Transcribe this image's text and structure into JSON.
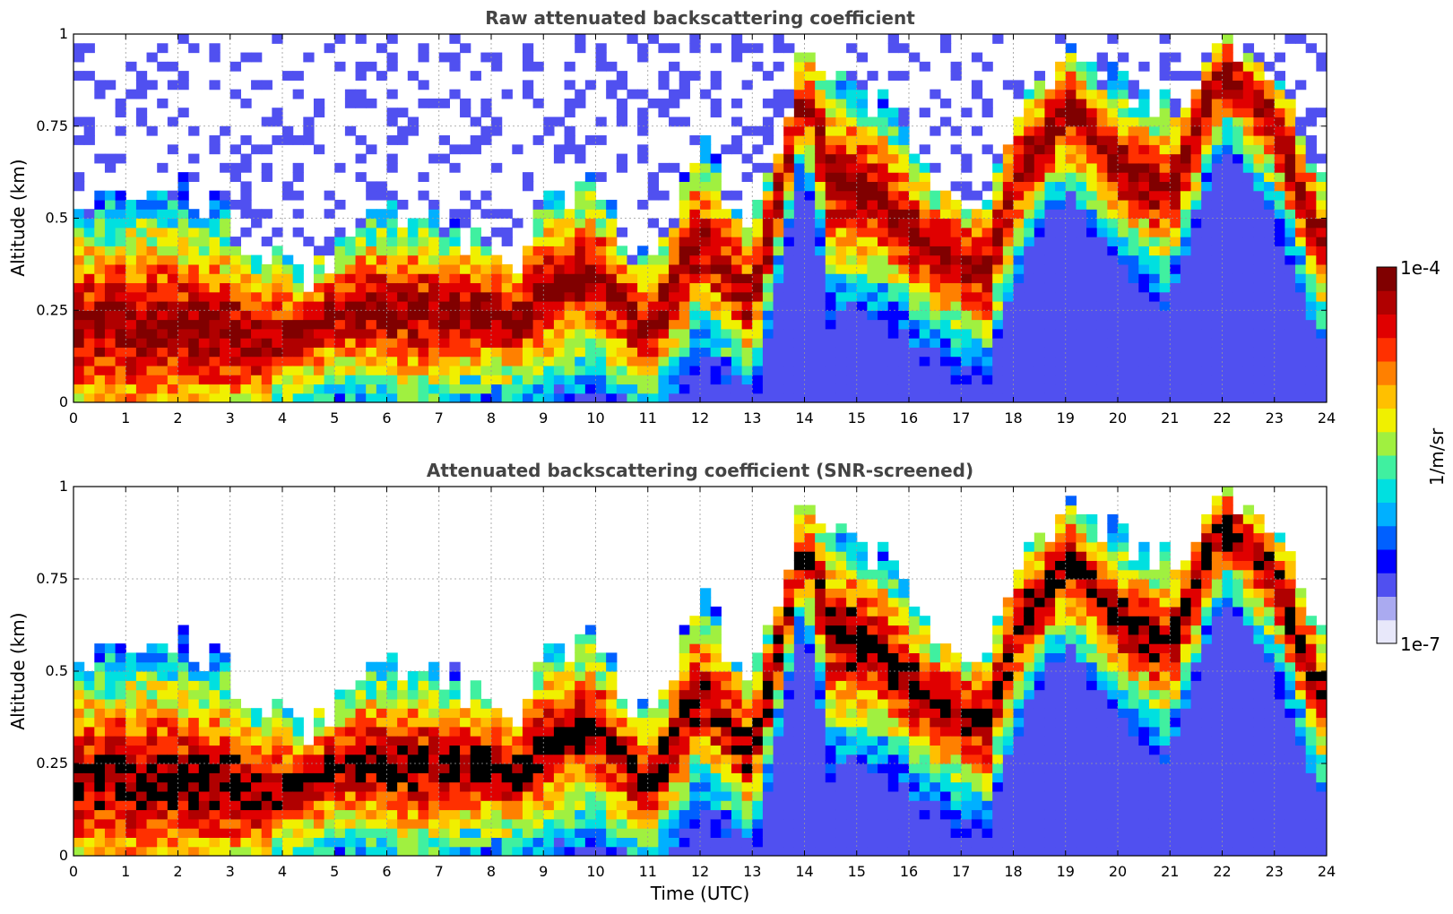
{
  "chart_data": [
    {
      "type": "heatmap",
      "title": "Raw attenuated backscattering coefficient",
      "ylabel": "Altitude (km)",
      "xlabel": "",
      "xlim": [
        0,
        24
      ],
      "ylim": [
        0,
        1
      ],
      "xticks": [
        "0",
        "1",
        "2",
        "3",
        "4",
        "5",
        "6",
        "7",
        "8",
        "9",
        "10",
        "11",
        "12",
        "13",
        "14",
        "15",
        "16",
        "17",
        "18",
        "19",
        "20",
        "21",
        "22",
        "23",
        "24"
      ],
      "yticks": [
        "0",
        "0.25",
        "0.5",
        "0.75",
        "1"
      ],
      "grid": true,
      "profile_keyframes": {
        "x": [
          0,
          1.5,
          2.8,
          3.5,
          4.5,
          5.5,
          6.5,
          7.5,
          8.5,
          9.0,
          10.0,
          11.0,
          12.0,
          13.0,
          14.0,
          14.5,
          15.5,
          16.5,
          17.5,
          18.0,
          19.0,
          20.0,
          21.0,
          22.0,
          23.0,
          24.0
        ],
        "layer_altitude_km": [
          0.2,
          0.2,
          0.2,
          0.17,
          0.2,
          0.26,
          0.25,
          0.25,
          0.22,
          0.3,
          0.35,
          0.18,
          0.45,
          0.27,
          0.85,
          0.6,
          0.55,
          0.4,
          0.35,
          0.6,
          0.8,
          0.65,
          0.57,
          0.9,
          0.75,
          0.4
        ],
        "top_altitude_km": [
          0.55,
          0.6,
          0.55,
          0.4,
          0.35,
          0.5,
          0.55,
          0.45,
          0.4,
          0.55,
          0.6,
          0.35,
          0.7,
          0.45,
          0.95,
          0.9,
          0.8,
          0.6,
          0.55,
          0.8,
          0.95,
          0.85,
          0.8,
          1.0,
          0.9,
          0.6
        ]
      }
    },
    {
      "type": "heatmap",
      "title": "Attenuated backscattering coefficient (SNR-screened)",
      "ylabel": "Altitude (km)",
      "xlabel": "Time (UTC)",
      "xlim": [
        0,
        24
      ],
      "ylim": [
        0,
        1
      ],
      "xticks": [
        "0",
        "1",
        "2",
        "3",
        "4",
        "5",
        "6",
        "7",
        "8",
        "9",
        "10",
        "11",
        "12",
        "13",
        "14",
        "15",
        "16",
        "17",
        "18",
        "19",
        "20",
        "21",
        "22",
        "23",
        "24"
      ],
      "yticks": [
        "0",
        "0.25",
        "0.5",
        "0.75",
        "1"
      ],
      "grid": true,
      "screened": true
    }
  ],
  "colorbar": {
    "label": "1/m/sr",
    "max_label": "1e-4",
    "min_label": "1e-7",
    "colors": [
      "#e8e8fa",
      "#aaaaf0",
      "#5050f0",
      "#0000ff",
      "#0060ff",
      "#00b0ff",
      "#00e0e0",
      "#40f0a0",
      "#a0f040",
      "#f0f000",
      "#ffc000",
      "#ff8000",
      "#ff3000",
      "#e00000",
      "#b00000",
      "#800000"
    ],
    "screened_overflow_color": "#000000"
  }
}
